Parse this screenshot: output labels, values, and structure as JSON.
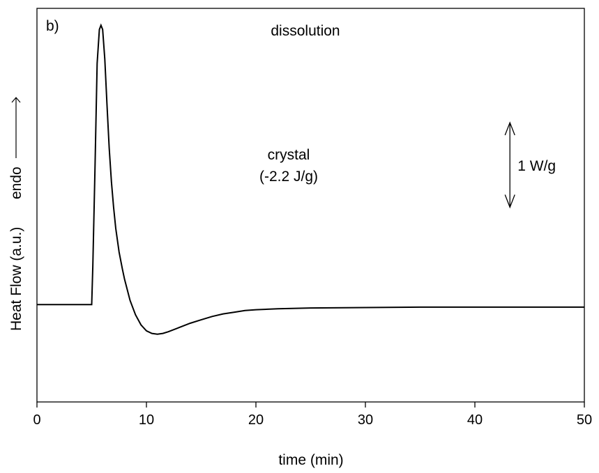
{
  "chart_data": {
    "type": "line",
    "panel_label": "b)",
    "title": "dissolution",
    "xlabel": "time (min)",
    "ylabel": "Heat Flow (a.u.)",
    "ylabel_direction": "endo",
    "xlim": [
      0,
      50
    ],
    "ylim": [
      -1.15,
      3.5
    ],
    "y_tick_labels_shown": false,
    "grid": false,
    "x_ticks": [
      0,
      10,
      20,
      30,
      40,
      50
    ],
    "x_tick_labels": [
      "0",
      "10",
      "20",
      "30",
      "40",
      "50"
    ],
    "annotations": {
      "peak_label_line1": "crystal",
      "peak_label_line2": "(-2.2 J/g)",
      "scale_bar_label": "1 W/g",
      "scale_bar_value": 1.0,
      "scale_bar_x": 43.2,
      "scale_bar_center_y": 1.65
    },
    "series": [
      {
        "color": "#000000",
        "x": [
          0,
          5.0,
          5.1,
          5.3,
          5.5,
          5.7,
          5.85,
          6.0,
          6.2,
          6.4,
          6.6,
          6.8,
          7.0,
          7.2,
          7.5,
          7.8,
          8.0,
          8.5,
          9.0,
          9.5,
          10.0,
          10.5,
          11.0,
          11.5,
          12.0,
          13.0,
          14.0,
          15.0,
          16.0,
          17.0,
          18.0,
          19.0,
          20.0,
          22.0,
          25.0,
          30.0,
          35.0,
          40.0,
          45.0,
          50.0
        ],
        "y": [
          0.0,
          0.0,
          0.45,
          1.6,
          2.85,
          3.25,
          3.3,
          3.25,
          2.9,
          2.35,
          1.85,
          1.45,
          1.15,
          0.9,
          0.62,
          0.42,
          0.3,
          0.05,
          -0.12,
          -0.24,
          -0.31,
          -0.34,
          -0.35,
          -0.34,
          -0.32,
          -0.27,
          -0.22,
          -0.18,
          -0.14,
          -0.11,
          -0.09,
          -0.07,
          -0.06,
          -0.05,
          -0.04,
          -0.035,
          -0.03,
          -0.03,
          -0.03,
          -0.03
        ]
      }
    ]
  }
}
